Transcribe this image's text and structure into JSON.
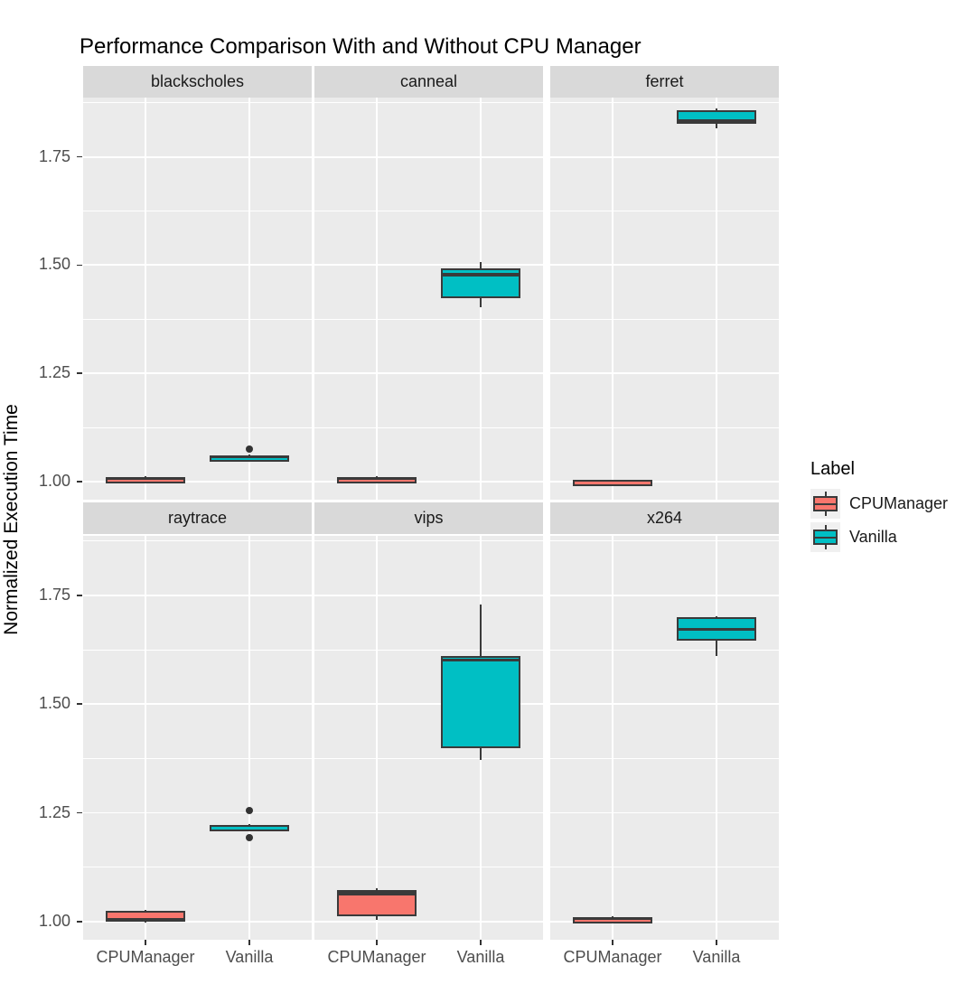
{
  "title": "Performance Comparison With and Without CPU Manager",
  "axes": {
    "y_label": "Normalized Execution Time",
    "y_tick_labels": [
      "1.00",
      "1.25",
      "1.50",
      "1.75"
    ],
    "x_categories": [
      "CPUManager",
      "Vanilla"
    ]
  },
  "legend": {
    "title": "Label",
    "entries": [
      {
        "label": "CPUManager",
        "color": "#F8766D"
      },
      {
        "label": "Vanilla",
        "color": "#00BFC4"
      }
    ]
  },
  "colors": {
    "panel_bg": "#EBEBEB",
    "strip_bg": "#D9D9D9",
    "grid": "#FFFFFF",
    "box_stroke": "#3A3A3A",
    "outlier": "#333333",
    "tick_text": "#4D4D4D",
    "strip_text": "#1A1A1A",
    "cpumanager_fill": "#F8766D",
    "vanilla_fill": "#00BFC4"
  },
  "chart_data": {
    "type": "boxplot",
    "title": "Performance Comparison With and Without CPU Manager",
    "xlabel": "",
    "ylabel": "Normalized Execution Time",
    "facet_layout": {
      "rows": 2,
      "cols": 3
    },
    "legend_position": "right",
    "grid": true,
    "ylim": [
      0.958,
      1.887
    ],
    "y_major_ticks": [
      1.0,
      1.25,
      1.5,
      1.75
    ],
    "y_tick_labels": [
      "1.00",
      "1.25",
      "1.50",
      "1.75"
    ],
    "y_minor_ticks": [
      1.125,
      1.375,
      1.625,
      1.875
    ],
    "x_categories": [
      "CPUManager",
      "Vanilla"
    ],
    "series_colors": {
      "CPUManager": "#F8766D",
      "Vanilla": "#00BFC4"
    },
    "facets": [
      {
        "name": "blackscholes",
        "boxes": [
          {
            "label": "CPUManager",
            "whisker_low": 1.001,
            "q1": 1.003,
            "median": 1.006,
            "q3": 1.01,
            "whisker_high": 1.012,
            "outliers": []
          },
          {
            "label": "Vanilla",
            "whisker_low": 1.052,
            "q1": 1.054,
            "median": 1.057,
            "q3": 1.06,
            "whisker_high": 1.062,
            "outliers": [
              1.075
            ]
          }
        ]
      },
      {
        "name": "canneal",
        "boxes": [
          {
            "label": "CPUManager",
            "whisker_low": 1.0,
            "q1": 1.002,
            "median": 1.005,
            "q3": 1.01,
            "whisker_high": 1.012,
            "outliers": []
          },
          {
            "label": "Vanilla",
            "whisker_low": 1.403,
            "q1": 1.424,
            "median": 1.478,
            "q3": 1.492,
            "whisker_high": 1.507,
            "outliers": []
          }
        ]
      },
      {
        "name": "ferret",
        "boxes": [
          {
            "label": "CPUManager",
            "whisker_low": 0.998,
            "q1": 0.999,
            "median": 1.001,
            "q3": 1.003,
            "whisker_high": 1.004,
            "outliers": []
          },
          {
            "label": "Vanilla",
            "whisker_low": 1.815,
            "q1": 1.827,
            "median": 1.833,
            "q3": 1.858,
            "whisker_high": 1.862,
            "outliers": []
          }
        ]
      },
      {
        "name": "raytrace",
        "boxes": [
          {
            "label": "CPUManager",
            "whisker_low": 0.998,
            "q1": 1.0,
            "median": 1.006,
            "q3": 1.024,
            "whisker_high": 1.026,
            "outliers": []
          },
          {
            "label": "Vanilla",
            "whisker_low": 1.215,
            "q1": 1.216,
            "median": 1.219,
            "q3": 1.222,
            "whisker_high": 1.223,
            "outliers": [
              1.256,
              1.193
            ]
          }
        ]
      },
      {
        "name": "vips",
        "boxes": [
          {
            "label": "CPUManager",
            "whisker_low": 1.003,
            "q1": 1.013,
            "median": 1.064,
            "q3": 1.072,
            "whisker_high": 1.076,
            "outliers": []
          },
          {
            "label": "Vanilla",
            "whisker_low": 1.372,
            "q1": 1.398,
            "median": 1.601,
            "q3": 1.61,
            "whisker_high": 1.73,
            "outliers": []
          }
        ]
      },
      {
        "name": "x264",
        "boxes": [
          {
            "label": "CPUManager",
            "whisker_low": 1.002,
            "q1": 1.004,
            "median": 1.006,
            "q3": 1.009,
            "whisker_high": 1.011,
            "outliers": []
          },
          {
            "label": "Vanilla",
            "whisker_low": 1.61,
            "q1": 1.645,
            "median": 1.672,
            "q3": 1.7,
            "whisker_high": 1.703,
            "outliers": []
          }
        ]
      }
    ]
  }
}
